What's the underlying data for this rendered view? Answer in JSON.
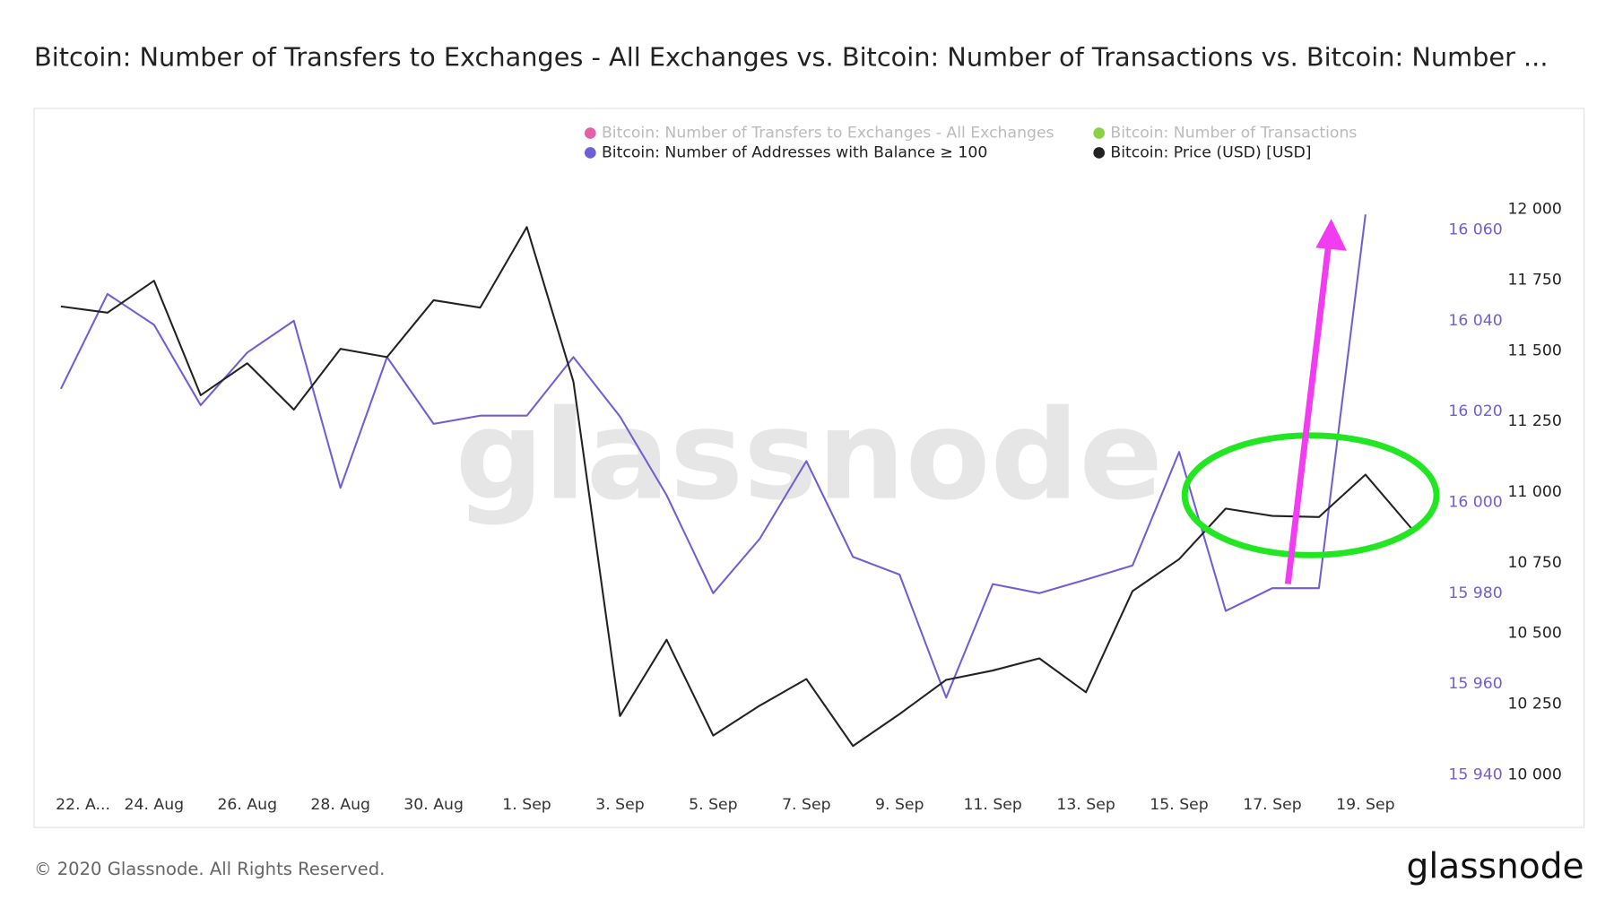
{
  "chart_data": {
    "type": "line",
    "title": "Bitcoin: Number of Transfers to Exchanges - All Exchanges vs. Bitcoin: Number of Transactions vs. Bitcoin: Number ...",
    "watermark": "glassnode",
    "footer": "© 2020 Glassnode. All Rights Reserved.",
    "logo": "glassnode",
    "categories": [
      "22. A...",
      null,
      "24. Aug",
      null,
      "26. Aug",
      null,
      "28. Aug",
      null,
      "30. Aug",
      null,
      "1. Sep",
      null,
      "3. Sep",
      null,
      "5. Sep",
      null,
      "7. Sep",
      null,
      "9. Sep",
      null,
      "11. Sep",
      null,
      "13. Sep",
      null,
      "15. Sep",
      null,
      "17. Sep",
      null,
      "19. Sep",
      null
    ],
    "series": [
      {
        "name": "Bitcoin: Number of Transfers to Exchanges - All Exchanges",
        "color": "#e0509e",
        "visible": false
      },
      {
        "name": "Bitcoin: Number of Transactions",
        "color": "#7ccd2c",
        "visible": false
      },
      {
        "name": "Bitcoin: Number of Addresses with Balance ≥ 100",
        "color": "#6f5fd6",
        "axis": "y2",
        "visible": true,
        "values": [
          16025.0,
          16045.9,
          16039.1,
          16021.4,
          16033.0,
          16040.0,
          16003.2,
          16032.0,
          16017.3,
          16019.1,
          16019.1,
          16032.0,
          16018.9,
          16001.6,
          15980.0,
          15992.0,
          16009.1,
          15988.0,
          15984.1,
          15957.0,
          15982.0,
          15980.0,
          15983.0,
          15986.1,
          16011.1,
          15976.1,
          15981.1,
          15981.1,
          16063.4,
          null
        ]
      },
      {
        "name": "Bitcoin: Price (USD) [USD]",
        "color": "#222222",
        "visible": true,
        "values": [
          11657,
          11635,
          11748,
          11343,
          11456,
          11292,
          11507,
          11478,
          11679,
          11653,
          11938,
          11391,
          10208,
          10478,
          10139,
          10245,
          10339,
          10102,
          10215,
          10336,
          10369,
          10412,
          10292,
          10650,
          10763,
          10942,
          10916,
          10912,
          11062,
          10869
        ]
      }
    ],
    "ylim": [
      10000,
      12000
    ],
    "yticks": [
      {
        "value": 10000,
        "label": "10 000"
      },
      {
        "value": 10250,
        "label": "10 250"
      },
      {
        "value": 10500,
        "label": "10 500"
      },
      {
        "value": 10750,
        "label": "10 750"
      },
      {
        "value": 11000,
        "label": "11 000"
      },
      {
        "value": 11250,
        "label": "11 250"
      },
      {
        "value": 11500,
        "label": "11 500"
      },
      {
        "value": 11750,
        "label": "11 750"
      },
      {
        "value": 12000,
        "label": "12 000"
      }
    ],
    "y2lim": [
      15940,
      16064.5
    ],
    "y2ticks": [
      {
        "value": 15940,
        "label": "15 940"
      },
      {
        "value": 15960,
        "label": "15 960"
      },
      {
        "value": 15980,
        "label": "15 980"
      },
      {
        "value": 16000,
        "label": "16 000"
      },
      {
        "value": 16020,
        "label": "16 020"
      },
      {
        "value": 16040,
        "label": "16 040"
      },
      {
        "value": 16060,
        "label": "16 060"
      }
    ],
    "grid": false
  }
}
